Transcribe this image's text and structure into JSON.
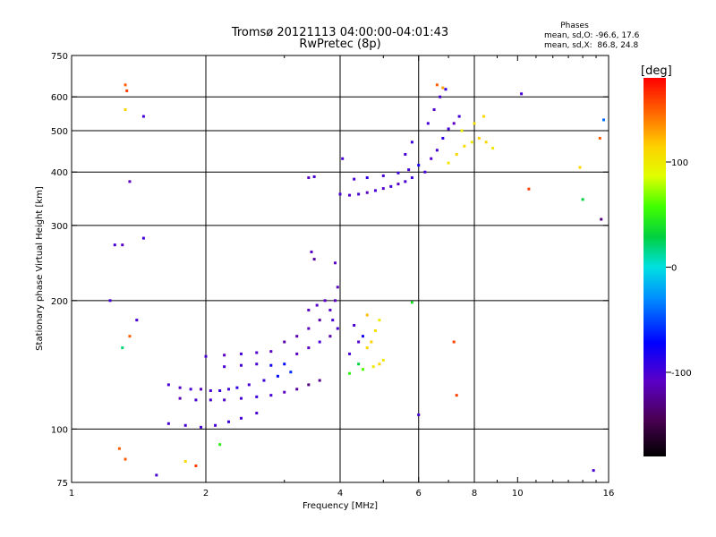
{
  "chart_data": {
    "type": "scatter",
    "title": "Tromsø 20121113 04:00:00-04:01:43",
    "subtitle": "RwPretec (8p)",
    "stats": {
      "heading": "Phases",
      "line1": "mean, sd,O: -96.6, 17.6",
      "line2": "mean, sd,X:  86.8, 24.8"
    },
    "xlabel": "Frequency [MHz]",
    "ylabel": "Stationary phase Virtual Height [km]",
    "x_scale": "log",
    "y_scale": "log",
    "xlim": [
      1,
      16
    ],
    "ylim": [
      75,
      750
    ],
    "xticks": [
      1,
      2,
      4,
      6,
      8,
      10,
      16
    ],
    "xtick_labels": [
      "1",
      "2",
      "4",
      "6",
      "8",
      "10",
      "16"
    ],
    "yticks": [
      75,
      100,
      200,
      300,
      400,
      500,
      600,
      750
    ],
    "ytick_labels": [
      "75",
      "100",
      "200",
      "300",
      "400",
      "500",
      "600",
      "750"
    ],
    "grid_x": [
      2,
      4,
      6,
      8
    ],
    "grid_y": [
      100,
      200,
      300,
      400,
      500,
      600
    ],
    "grid": true,
    "colorbar": {
      "label": "[deg]",
      "range": [
        -180,
        180
      ],
      "ticks": [
        -100,
        0,
        100
      ],
      "tick_labels": [
        "-100",
        "0",
        "100"
      ],
      "colormap": "rainbow (black-purple-blue-cyan-green-yellow-orange-red)"
    },
    "series": [
      {
        "values": [
          {
            "x": 1.65,
            "y": 127,
            "phase": -100
          },
          {
            "x": 1.75,
            "y": 125,
            "phase": -105
          },
          {
            "x": 1.85,
            "y": 124,
            "phase": -100
          },
          {
            "x": 1.95,
            "y": 124,
            "phase": -110
          },
          {
            "x": 2.05,
            "y": 123,
            "phase": -100
          },
          {
            "x": 2.15,
            "y": 123,
            "phase": -95
          },
          {
            "x": 2.25,
            "y": 124,
            "phase": -100
          },
          {
            "x": 2.35,
            "y": 125,
            "phase": -90
          },
          {
            "x": 2.5,
            "y": 127,
            "phase": -100
          },
          {
            "x": 2.7,
            "y": 130,
            "phase": -95
          },
          {
            "x": 2.9,
            "y": 133,
            "phase": -70
          },
          {
            "x": 3.1,
            "y": 136,
            "phase": -60
          },
          {
            "x": 1.75,
            "y": 118,
            "phase": -110
          },
          {
            "x": 1.9,
            "y": 117,
            "phase": -100
          },
          {
            "x": 2.05,
            "y": 117,
            "phase": -100
          },
          {
            "x": 2.2,
            "y": 117,
            "phase": -105
          },
          {
            "x": 2.4,
            "y": 118,
            "phase": -100
          },
          {
            "x": 2.6,
            "y": 119,
            "phase": -95
          },
          {
            "x": 2.8,
            "y": 120,
            "phase": -100
          },
          {
            "x": 3.0,
            "y": 122,
            "phase": -110
          },
          {
            "x": 3.2,
            "y": 124,
            "phase": -120
          },
          {
            "x": 3.4,
            "y": 127,
            "phase": -130
          },
          {
            "x": 3.6,
            "y": 130,
            "phase": -125
          },
          {
            "x": 1.65,
            "y": 103,
            "phase": -100
          },
          {
            "x": 1.8,
            "y": 102,
            "phase": -100
          },
          {
            "x": 1.95,
            "y": 101,
            "phase": -100
          },
          {
            "x": 2.1,
            "y": 102,
            "phase": -100
          },
          {
            "x": 2.25,
            "y": 104,
            "phase": -95
          },
          {
            "x": 2.4,
            "y": 106,
            "phase": -100
          },
          {
            "x": 2.6,
            "y": 109,
            "phase": -100
          },
          {
            "x": 2.0,
            "y": 148,
            "phase": -100
          },
          {
            "x": 2.2,
            "y": 149,
            "phase": -110
          },
          {
            "x": 2.4,
            "y": 150,
            "phase": -100
          },
          {
            "x": 2.6,
            "y": 151,
            "phase": -105
          },
          {
            "x": 2.8,
            "y": 152,
            "phase": -110
          },
          {
            "x": 2.2,
            "y": 140,
            "phase": -100
          },
          {
            "x": 2.4,
            "y": 141,
            "phase": -100
          },
          {
            "x": 2.6,
            "y": 142,
            "phase": -100
          },
          {
            "x": 2.8,
            "y": 141,
            "phase": -80
          },
          {
            "x": 3.0,
            "y": 142,
            "phase": -70
          },
          {
            "x": 3.0,
            "y": 160,
            "phase": -120
          },
          {
            "x": 3.2,
            "y": 165,
            "phase": -115
          },
          {
            "x": 3.4,
            "y": 172,
            "phase": -110
          },
          {
            "x": 3.6,
            "y": 180,
            "phase": -120
          },
          {
            "x": 3.8,
            "y": 190,
            "phase": -105
          },
          {
            "x": 3.9,
            "y": 200,
            "phase": -110
          },
          {
            "x": 3.2,
            "y": 150,
            "phase": -110
          },
          {
            "x": 3.4,
            "y": 155,
            "phase": -110
          },
          {
            "x": 3.6,
            "y": 160,
            "phase": -100
          },
          {
            "x": 3.8,
            "y": 165,
            "phase": -115
          },
          {
            "x": 3.95,
            "y": 172,
            "phase": -100
          },
          {
            "x": 3.4,
            "y": 190,
            "phase": -110
          },
          {
            "x": 3.55,
            "y": 195,
            "phase": -105
          },
          {
            "x": 3.7,
            "y": 200,
            "phase": -110
          },
          {
            "x": 3.85,
            "y": 180,
            "phase": -100
          },
          {
            "x": 3.95,
            "y": 215,
            "phase": -110
          },
          {
            "x": 3.9,
            "y": 245,
            "phase": -110
          },
          {
            "x": 3.45,
            "y": 260,
            "phase": -110
          },
          {
            "x": 3.5,
            "y": 250,
            "phase": -120
          },
          {
            "x": 4.2,
            "y": 150,
            "phase": -100
          },
          {
            "x": 4.4,
            "y": 160,
            "phase": -105
          },
          {
            "x": 4.3,
            "y": 175,
            "phase": -100
          },
          {
            "x": 4.5,
            "y": 165,
            "phase": -80
          }
        ]
      },
      {
        "values": [
          {
            "x": 4.6,
            "y": 155,
            "phase": 110
          },
          {
            "x": 4.7,
            "y": 160,
            "phase": 115
          },
          {
            "x": 4.8,
            "y": 170,
            "phase": 105
          },
          {
            "x": 4.9,
            "y": 180,
            "phase": 100
          },
          {
            "x": 4.75,
            "y": 140,
            "phase": 100
          },
          {
            "x": 4.9,
            "y": 142,
            "phase": 110
          },
          {
            "x": 5.0,
            "y": 145,
            "phase": 100
          },
          {
            "x": 4.5,
            "y": 138,
            "phase": 60
          },
          {
            "x": 4.6,
            "y": 185,
            "phase": 120
          },
          {
            "x": 4.2,
            "y": 135,
            "phase": 50
          },
          {
            "x": 4.4,
            "y": 142,
            "phase": 30
          }
        ]
      },
      {
        "values": [
          {
            "x": 4.0,
            "y": 355,
            "phase": -100
          },
          {
            "x": 4.2,
            "y": 353,
            "phase": -105
          },
          {
            "x": 4.4,
            "y": 355,
            "phase": -100
          },
          {
            "x": 4.6,
            "y": 358,
            "phase": -110
          },
          {
            "x": 4.8,
            "y": 362,
            "phase": -100
          },
          {
            "x": 5.0,
            "y": 366,
            "phase": -105
          },
          {
            "x": 5.2,
            "y": 370,
            "phase": -100
          },
          {
            "x": 5.4,
            "y": 375,
            "phase": -110
          },
          {
            "x": 5.6,
            "y": 380,
            "phase": -100
          },
          {
            "x": 5.8,
            "y": 388,
            "phase": -95
          },
          {
            "x": 4.3,
            "y": 385,
            "phase": -100
          },
          {
            "x": 4.6,
            "y": 388,
            "phase": -90
          },
          {
            "x": 5.0,
            "y": 392,
            "phase": -100
          },
          {
            "x": 5.4,
            "y": 398,
            "phase": -95
          },
          {
            "x": 5.7,
            "y": 405,
            "phase": -100
          },
          {
            "x": 6.0,
            "y": 415,
            "phase": -80
          },
          {
            "x": 3.4,
            "y": 388,
            "phase": -110
          },
          {
            "x": 3.5,
            "y": 390,
            "phase": -100
          },
          {
            "x": 4.05,
            "y": 430,
            "phase": -100
          },
          {
            "x": 5.6,
            "y": 440,
            "phase": -100
          },
          {
            "x": 5.8,
            "y": 470,
            "phase": -95
          }
        ]
      },
      {
        "values": [
          {
            "x": 6.2,
            "y": 400,
            "phase": -100
          },
          {
            "x": 6.4,
            "y": 430,
            "phase": -105
          },
          {
            "x": 6.6,
            "y": 450,
            "phase": -100
          },
          {
            "x": 6.8,
            "y": 480,
            "phase": -90
          },
          {
            "x": 7.0,
            "y": 505,
            "phase": -100
          },
          {
            "x": 7.2,
            "y": 520,
            "phase": -110
          },
          {
            "x": 7.4,
            "y": 540,
            "phase": -100
          },
          {
            "x": 6.3,
            "y": 520,
            "phase": -100
          },
          {
            "x": 6.5,
            "y": 560,
            "phase": -105
          },
          {
            "x": 6.7,
            "y": 600,
            "phase": -100
          },
          {
            "x": 6.9,
            "y": 625,
            "phase": -90
          },
          {
            "x": 7.0,
            "y": 420,
            "phase": 100
          },
          {
            "x": 7.3,
            "y": 440,
            "phase": 110
          },
          {
            "x": 7.6,
            "y": 460,
            "phase": 105
          },
          {
            "x": 7.9,
            "y": 470,
            "phase": 100
          },
          {
            "x": 8.2,
            "y": 480,
            "phase": 115
          },
          {
            "x": 8.5,
            "y": 470,
            "phase": 110
          },
          {
            "x": 8.8,
            "y": 455,
            "phase": 100
          },
          {
            "x": 7.5,
            "y": 500,
            "phase": 95
          },
          {
            "x": 8.0,
            "y": 520,
            "phase": 105
          },
          {
            "x": 8.4,
            "y": 540,
            "phase": 110
          },
          {
            "x": 6.6,
            "y": 640,
            "phase": 150
          },
          {
            "x": 6.8,
            "y": 630,
            "phase": 130
          }
        ]
      },
      {
        "values": [
          {
            "x": 1.32,
            "y": 640,
            "phase": 150
          },
          {
            "x": 1.33,
            "y": 620,
            "phase": 160
          },
          {
            "x": 1.32,
            "y": 560,
            "phase": 110
          },
          {
            "x": 1.45,
            "y": 540,
            "phase": -100
          },
          {
            "x": 1.3,
            "y": 270,
            "phase": -110
          },
          {
            "x": 1.25,
            "y": 270,
            "phase": -100
          },
          {
            "x": 1.22,
            "y": 200,
            "phase": -100
          },
          {
            "x": 1.35,
            "y": 380,
            "phase": -110
          },
          {
            "x": 1.45,
            "y": 280,
            "phase": -100
          },
          {
            "x": 1.3,
            "y": 155,
            "phase": 20
          },
          {
            "x": 1.35,
            "y": 165,
            "phase": 150
          },
          {
            "x": 1.4,
            "y": 180,
            "phase": -100
          },
          {
            "x": 1.28,
            "y": 90,
            "phase": 150
          },
          {
            "x": 1.32,
            "y": 85,
            "phase": 150
          },
          {
            "x": 1.8,
            "y": 84,
            "phase": 110
          },
          {
            "x": 1.9,
            "y": 82,
            "phase": 160
          },
          {
            "x": 1.55,
            "y": 78,
            "phase": -100
          },
          {
            "x": 2.15,
            "y": 92,
            "phase": 50
          },
          {
            "x": 5.8,
            "y": 198,
            "phase": 40
          },
          {
            "x": 6.0,
            "y": 108,
            "phase": -100
          },
          {
            "x": 7.3,
            "y": 120,
            "phase": 160
          },
          {
            "x": 7.2,
            "y": 160,
            "phase": 160
          },
          {
            "x": 10.6,
            "y": 365,
            "phase": 160
          },
          {
            "x": 10.2,
            "y": 610,
            "phase": -100
          },
          {
            "x": 13.8,
            "y": 410,
            "phase": 110
          },
          {
            "x": 14.0,
            "y": 345,
            "phase": 30
          },
          {
            "x": 14.8,
            "y": 80,
            "phase": -100
          },
          {
            "x": 15.4,
            "y": 310,
            "phase": -130
          },
          {
            "x": 15.6,
            "y": 530,
            "phase": -40
          },
          {
            "x": 15.3,
            "y": 480,
            "phase": 150
          }
        ]
      }
    ]
  }
}
